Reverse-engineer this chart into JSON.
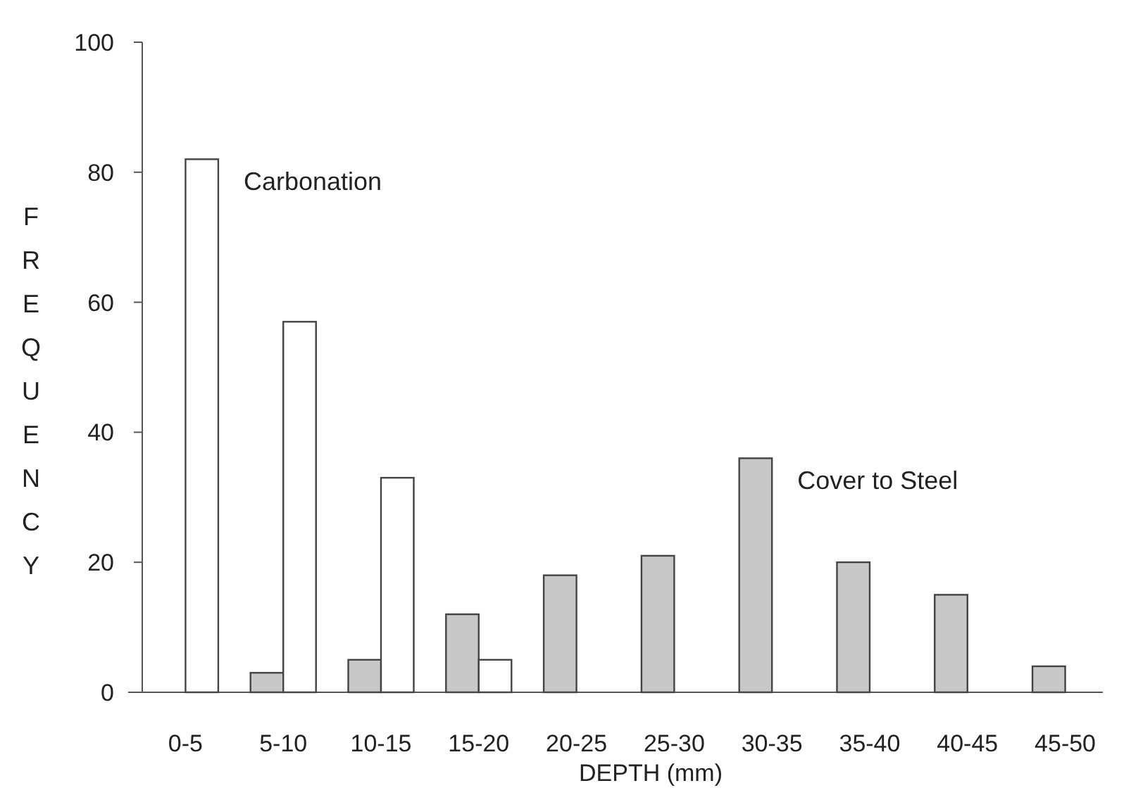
{
  "chart_data": {
    "type": "bar",
    "xlabel": "DEPTH (mm)",
    "ylabel": "FREQUENCY",
    "categories": [
      "0-5",
      "5-10",
      "10-15",
      "15-20",
      "20-25",
      "25-30",
      "30-35",
      "35-40",
      "40-45",
      "45-50"
    ],
    "series": [
      {
        "name": "Cover to Steel",
        "color": "#c8c8c8",
        "values": [
          null,
          3,
          5,
          12,
          18,
          21,
          36,
          20,
          15,
          4
        ]
      },
      {
        "name": "Carbonation",
        "color": "#ffffff",
        "values": [
          82,
          57,
          33,
          5,
          null,
          null,
          null,
          null,
          null,
          null
        ]
      }
    ],
    "ylim": [
      0,
      100
    ],
    "yticks": [
      0,
      20,
      40,
      60,
      80,
      100
    ],
    "grid": false
  }
}
